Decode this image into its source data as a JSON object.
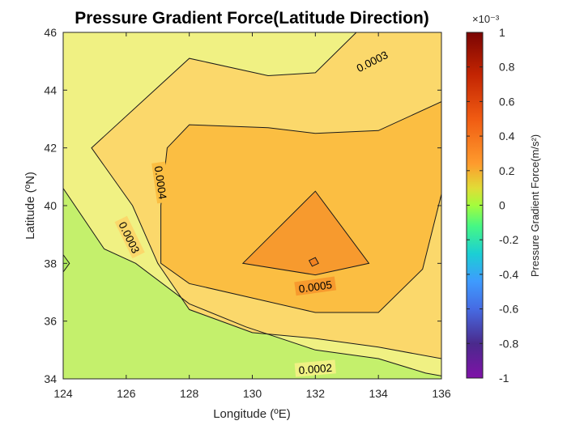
{
  "chart_data": {
    "type": "contour",
    "title": "Pressure Gradient Force(Latitude Direction)",
    "xlabel": "Longitude (ºE)",
    "ylabel": "Latitude (ºN)",
    "xlim": [
      124,
      136
    ],
    "ylim": [
      34,
      46
    ],
    "xticks": [
      "124",
      "126",
      "128",
      "130",
      "132",
      "134",
      "136"
    ],
    "yticks": [
      "34",
      "36",
      "38",
      "40",
      "42",
      "44",
      "46"
    ],
    "contour_labels": [
      "0.0003",
      "0.0004",
      "0.0003",
      "0.0005",
      "0.0002"
    ],
    "contour_levels": [
      0.0002,
      0.0003,
      0.0004,
      0.0005
    ],
    "fills": [
      {
        "level": 0.0001,
        "color": "#c4f06c",
        "points": [
          [
            124,
            34
          ],
          [
            136,
            34
          ],
          [
            136,
            46
          ],
          [
            124,
            46
          ]
        ]
      },
      {
        "level": 0.0002,
        "color": "#f0f183",
        "points": [
          [
            124,
            40.6
          ],
          [
            125.3,
            38.5
          ],
          [
            126.3,
            38
          ],
          [
            128,
            36.6
          ],
          [
            129.8,
            35.8
          ],
          [
            132,
            35
          ],
          [
            134,
            34.7
          ],
          [
            135.5,
            34.2
          ],
          [
            136,
            34.1
          ],
          [
            136,
            46
          ],
          [
            124,
            46
          ]
        ]
      },
      {
        "level": 0.0003,
        "color": "#fbd86b",
        "points": [
          [
            124.9,
            42
          ],
          [
            126.2,
            40
          ],
          [
            127,
            38
          ],
          [
            128,
            36.4
          ],
          [
            130,
            35.6
          ],
          [
            132,
            35.4
          ],
          [
            134,
            35.1
          ],
          [
            136,
            34.7
          ],
          [
            136,
            46
          ],
          [
            133.3,
            46
          ],
          [
            132,
            44.6
          ],
          [
            130.5,
            44.5
          ],
          [
            128,
            45.1
          ]
        ]
      },
      {
        "level": 0.0004,
        "color": "#fbbe42",
        "points": [
          [
            127.3,
            42
          ],
          [
            127.1,
            40
          ],
          [
            127.1,
            38
          ],
          [
            128,
            37.3
          ],
          [
            130,
            36.8
          ],
          [
            132,
            36.3
          ],
          [
            134,
            36.3
          ],
          [
            135.4,
            37.8
          ],
          [
            136,
            40.4
          ],
          [
            136,
            43.6
          ],
          [
            134,
            42.6
          ],
          [
            132,
            42.5
          ],
          [
            130.5,
            42.7
          ],
          [
            128,
            42.8
          ]
        ]
      },
      {
        "level": 0.0005,
        "color": "#f79a2e",
        "points": [
          [
            129.7,
            38
          ],
          [
            132,
            40.5
          ],
          [
            133.7,
            38
          ],
          [
            132,
            37.6
          ]
        ]
      },
      {
        "level": 0.0006,
        "color": "#f28220",
        "points": [
          [
            131.8,
            38.1
          ],
          [
            132,
            38.2
          ],
          [
            132.1,
            38
          ],
          [
            131.9,
            37.9
          ]
        ]
      }
    ],
    "colorbar": {
      "label": "Pressure Gradient Force(m/s²)",
      "multiplier": "×10⁻³",
      "range": [
        -1,
        1
      ],
      "ticks": [
        "1",
        "0.8",
        "0.6",
        "0.4",
        "0.2",
        "0",
        "-0.2",
        "-0.4",
        "-0.6",
        "-0.8",
        "-1"
      ],
      "colormap": [
        "#7a0403",
        "#c22402",
        "#f05b12",
        "#fe9b2d",
        "#e1dc37",
        "#a4fc3c",
        "#46f884",
        "#1bcfd4",
        "#3e9bfe",
        "#466be3",
        "#30123b",
        "#7f12a8"
      ]
    },
    "grid": false
  }
}
